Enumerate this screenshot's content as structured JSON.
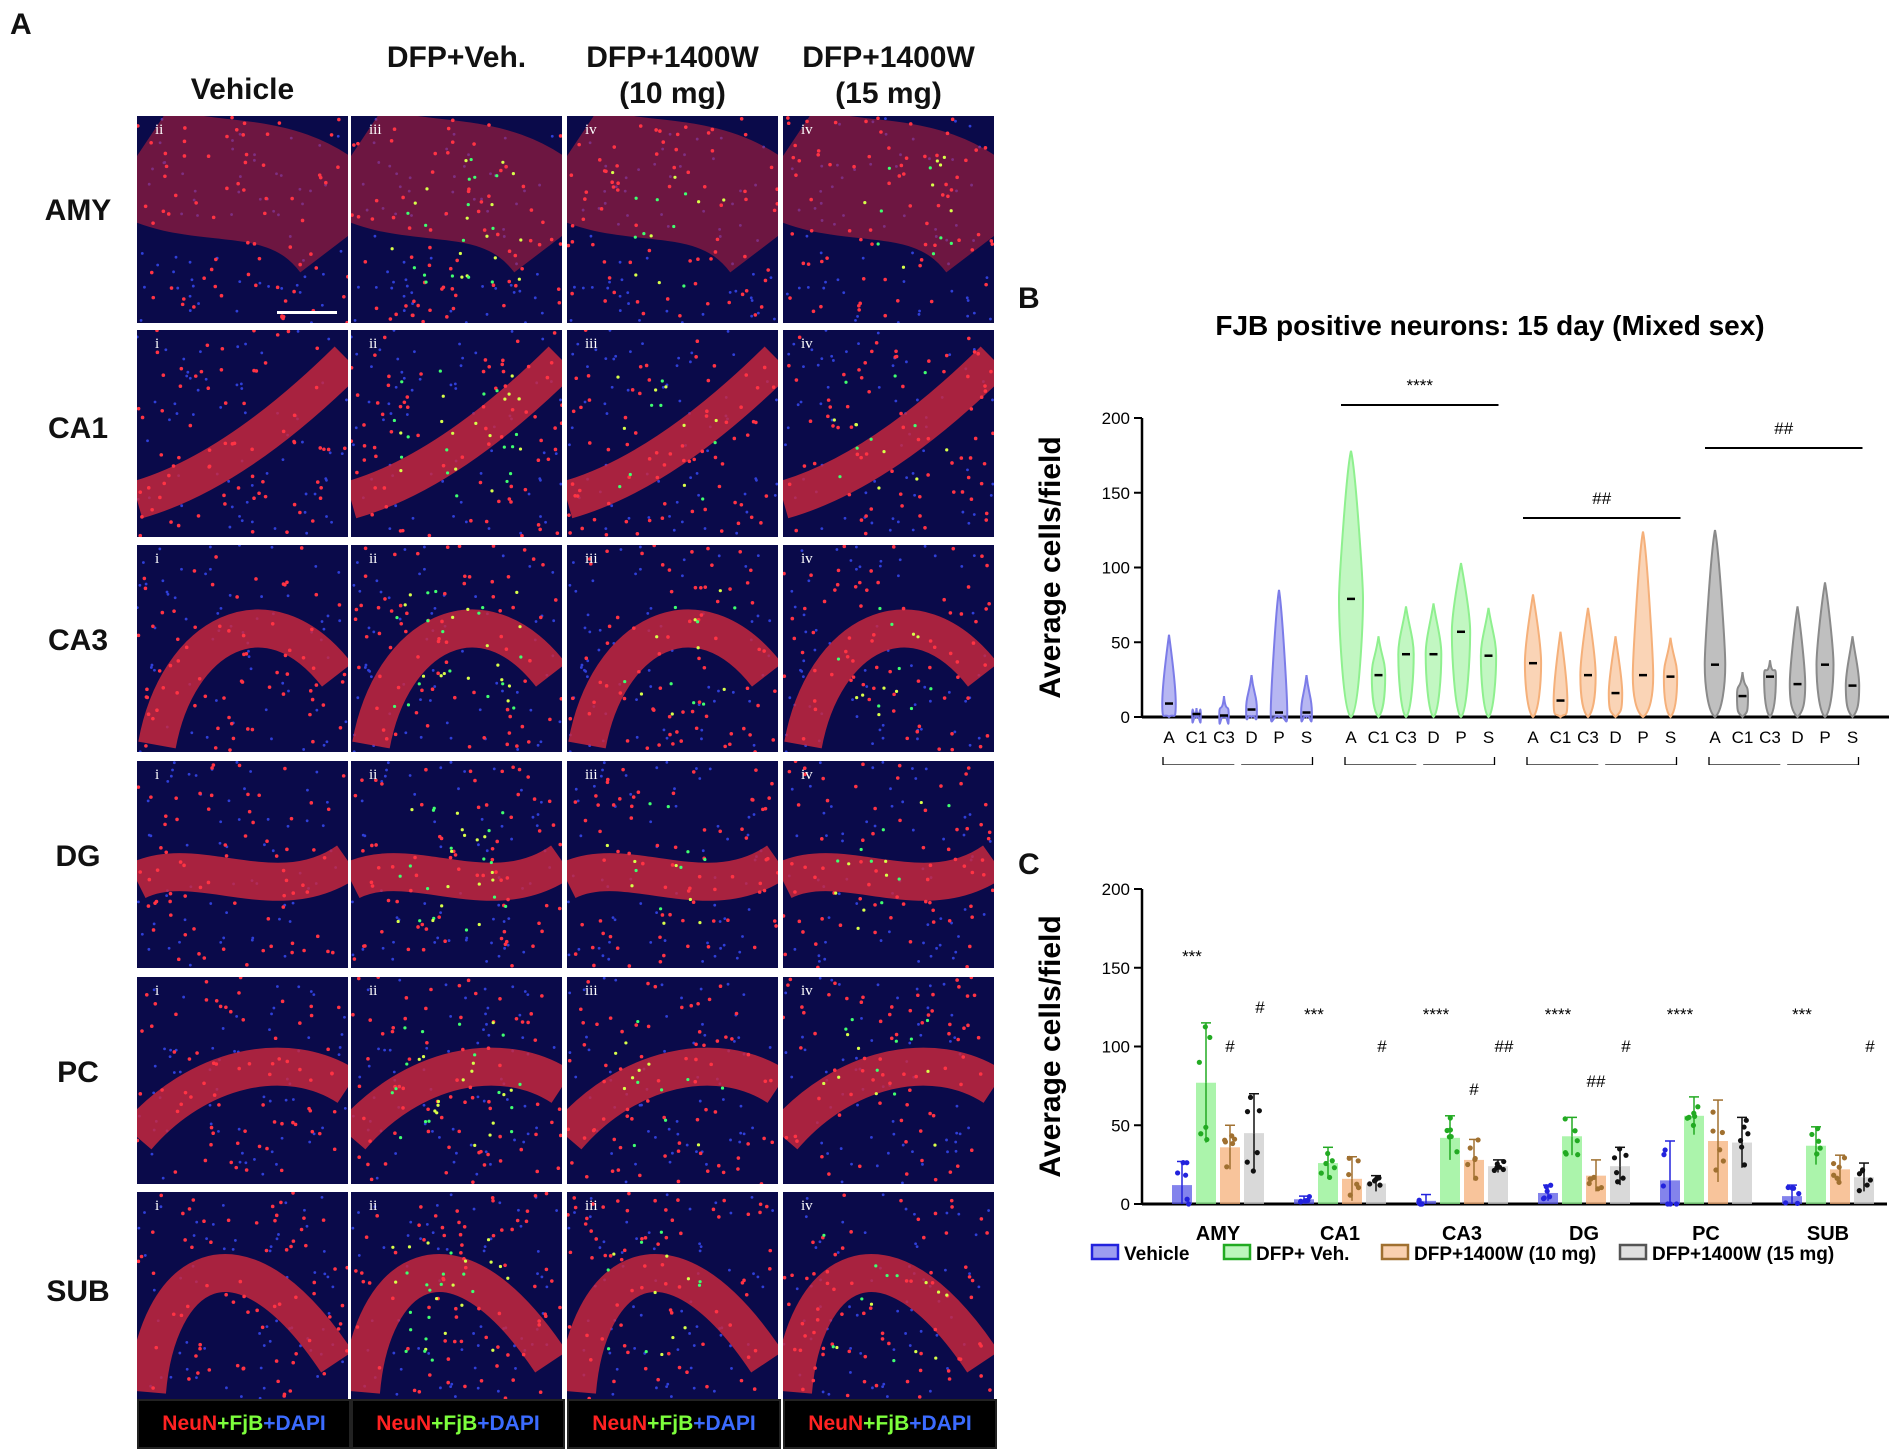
{
  "panel_a": {
    "letter": "A",
    "columns": [
      "Vehicle",
      "DFP+Veh.",
      "DFP+1400W\n(10 mg)",
      "DFP+1400W\n(15 mg)"
    ],
    "rows": [
      "AMY",
      "CA1",
      "CA3",
      "DG",
      "PC",
      "SUB"
    ],
    "tile_labels": [
      [
        "ii",
        "iii",
        "iv",
        "iv"
      ],
      [
        "i",
        "ii",
        "iii",
        "iv"
      ],
      [
        "i",
        "ii",
        "iii",
        "iv"
      ],
      [
        "i",
        "ii",
        "iii",
        "iv"
      ],
      [
        "i",
        "ii",
        "iii",
        "iv"
      ],
      [
        "i",
        "ii",
        "iii",
        "iv"
      ]
    ],
    "stain_legend": {
      "neun": "NeuN",
      "plus1": "+",
      "fjb": "FjB",
      "plus2": "+",
      "dapi": "DAPI"
    },
    "colors": {
      "neun": "#ff2222",
      "fjb": "#7dff3c",
      "dapi": "#3b6bff"
    }
  },
  "chart_data": [
    {
      "panel": "B",
      "type": "violin",
      "title": "FJB positive neurons: 15 day (Mixed sex)",
      "ylabel": "Average cells/field",
      "ylim": [
        0,
        200
      ],
      "yticks": [
        0,
        50,
        100,
        150,
        200
      ],
      "categories": [
        "A",
        "C1",
        "C3",
        "D",
        "P",
        "S"
      ],
      "groups": [
        {
          "name": "Vehicle",
          "color": "#7c7ce8",
          "medians": [
            9,
            2,
            1,
            5,
            3,
            3
          ],
          "max": [
            55,
            6,
            14,
            28,
            85,
            28
          ],
          "significance": ""
        },
        {
          "name": "DFP+ Veh.",
          "color": "#8ff08f",
          "medians": [
            79,
            28,
            42,
            42,
            57,
            41
          ],
          "max": [
            178,
            54,
            74,
            76,
            103,
            73
          ],
          "significance": "****"
        },
        {
          "name": "DFP+1400W\n(10 mg)",
          "color": "#f5b07a",
          "medians": [
            36,
            11,
            28,
            16,
            28,
            27
          ],
          "max": [
            82,
            57,
            73,
            54,
            124,
            53
          ],
          "significance": "##"
        },
        {
          "name": "DFP+1400W\n(15 mg)",
          "color": "#8a8a8a",
          "medians": [
            35,
            14,
            27,
            22,
            35,
            21
          ],
          "max": [
            125,
            30,
            38,
            74,
            90,
            54
          ],
          "significance": "##"
        }
      ]
    },
    {
      "panel": "C",
      "type": "bar",
      "ylabel": "Average cells/field",
      "ylim": [
        0,
        200
      ],
      "yticks": [
        0,
        50,
        100,
        150,
        200
      ],
      "categories": [
        "AMY",
        "CA1",
        "CA3",
        "DG",
        "PC",
        "SUB"
      ],
      "series": [
        {
          "name": "Vehicle",
          "color": "#5a5ae6",
          "dot": "#2222dd",
          "values": [
            12,
            3,
            2,
            7,
            15,
            5
          ],
          "errors": [
            15,
            2,
            4,
            5,
            25,
            7
          ]
        },
        {
          "name": "DFP+ Veh.",
          "color": "#8ff08f",
          "dot": "#22aa22",
          "values": [
            77,
            26,
            42,
            43,
            56,
            37
          ],
          "errors": [
            38,
            10,
            14,
            12,
            12,
            12
          ]
        },
        {
          "name": "DFP+1400W (10 mg)",
          "color": "#f5b07a",
          "dot": "#a07030",
          "values": [
            36,
            16,
            28,
            18,
            40,
            22
          ],
          "errors": [
            14,
            14,
            13,
            10,
            26,
            9
          ]
        },
        {
          "name": "DFP+1400W (15 mg)",
          "color": "#cccccc",
          "dot": "#111111",
          "values": [
            45,
            13,
            24,
            24,
            39,
            17
          ],
          "errors": [
            25,
            5,
            4,
            12,
            16,
            9
          ]
        }
      ],
      "annotations": {
        "above_dfp": [
          "***",
          "***",
          "****",
          "****",
          "****",
          "***"
        ],
        "above_10mg": [
          "#",
          "",
          "#",
          "##",
          "",
          ""
        ],
        "above_15mg": [
          "#",
          "#",
          "##",
          "#",
          "",
          "#"
        ]
      }
    }
  ]
}
